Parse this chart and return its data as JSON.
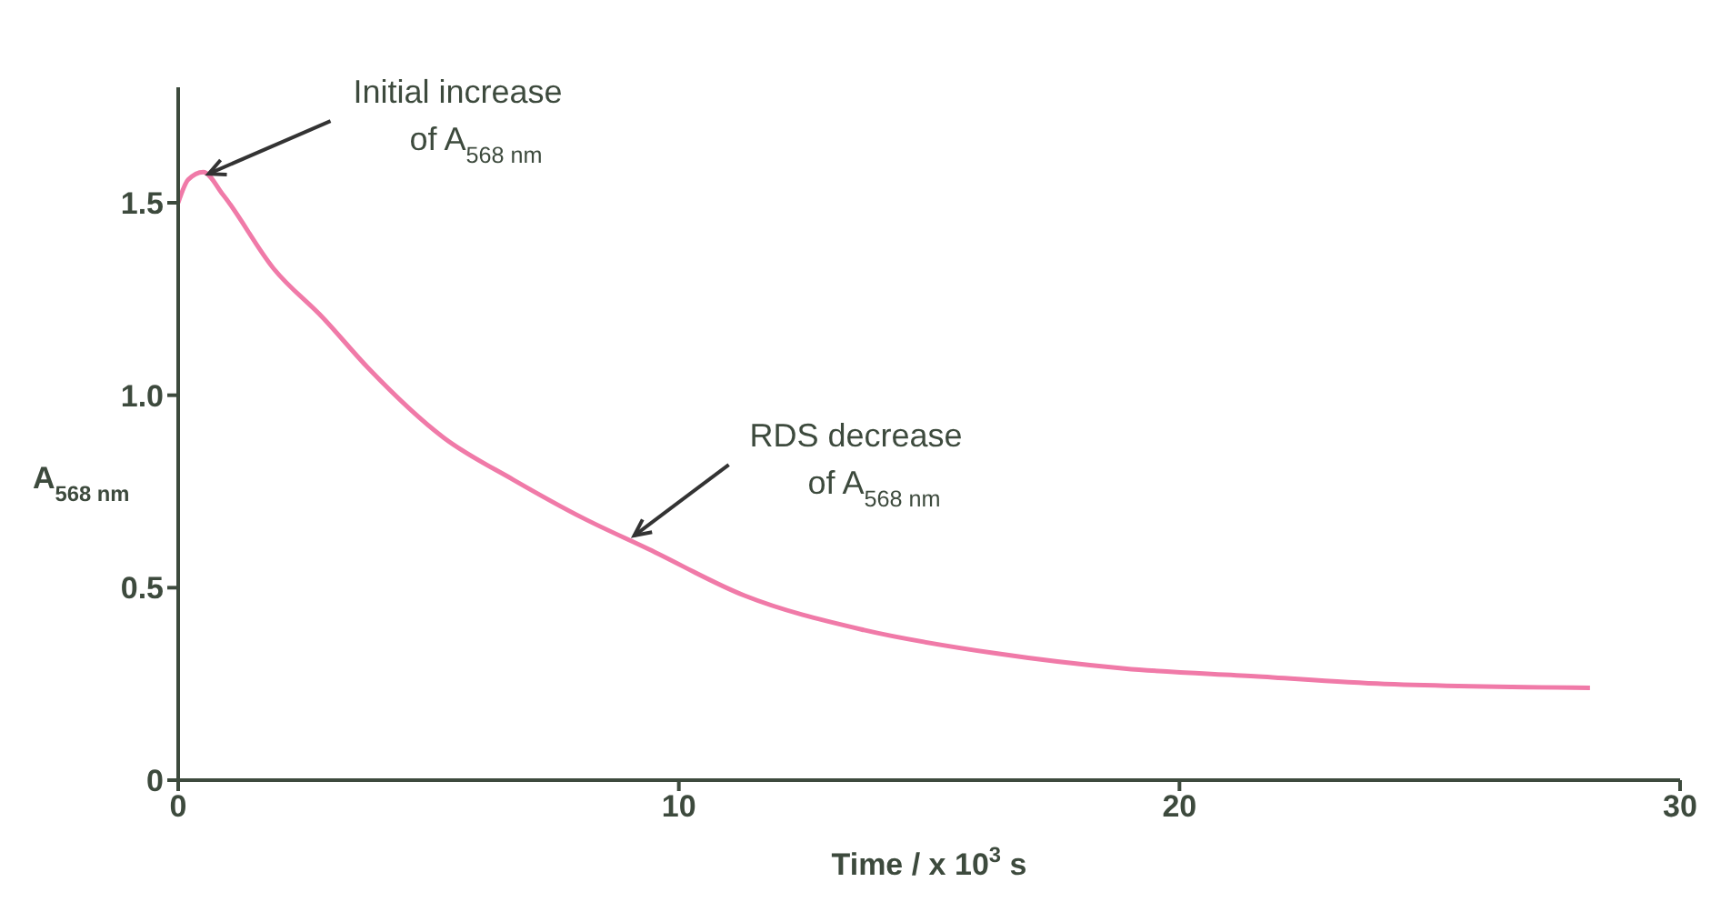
{
  "chart_data": {
    "type": "line",
    "xlabel": "Time / x 10$^{3}$ s",
    "ylabel": "A$_{568 nm}$",
    "x": [
      0,
      0.2,
      0.5,
      0.9,
      1.9,
      2.9,
      3.8,
      5.3,
      6.7,
      8.1,
      9.4,
      11.3,
      13.7,
      16.3,
      18.9,
      21.5,
      24.1,
      28.2
    ],
    "series": [
      {
        "color": "#f07aa8",
        "values": [
          1.5,
          1.56,
          1.58,
          1.52,
          1.33,
          1.2,
          1.07,
          0.89,
          0.78,
          0.68,
          0.6,
          0.48,
          0.39,
          0.33,
          0.29,
          0.27,
          0.25,
          0.24
        ]
      }
    ],
    "xlim": [
      0,
      30
    ],
    "xticks": [
      0,
      10,
      20,
      30
    ],
    "ylim": [
      0,
      1.8
    ],
    "yticks": [
      0,
      0.5,
      {
        "value": 1,
        "label": "1.0"
      },
      1.5
    ],
    "annotations": [
      {
        "text": "Initial increase\nof A$_{568 nm}$",
        "x": 0.5,
        "y": 1.58
      },
      {
        "text": "RDS decrease\nof A$_{568 nm}$",
        "x": 9,
        "y": 0.64
      }
    ],
    "grid": false,
    "marker": "none",
    "line_style": "solid"
  }
}
